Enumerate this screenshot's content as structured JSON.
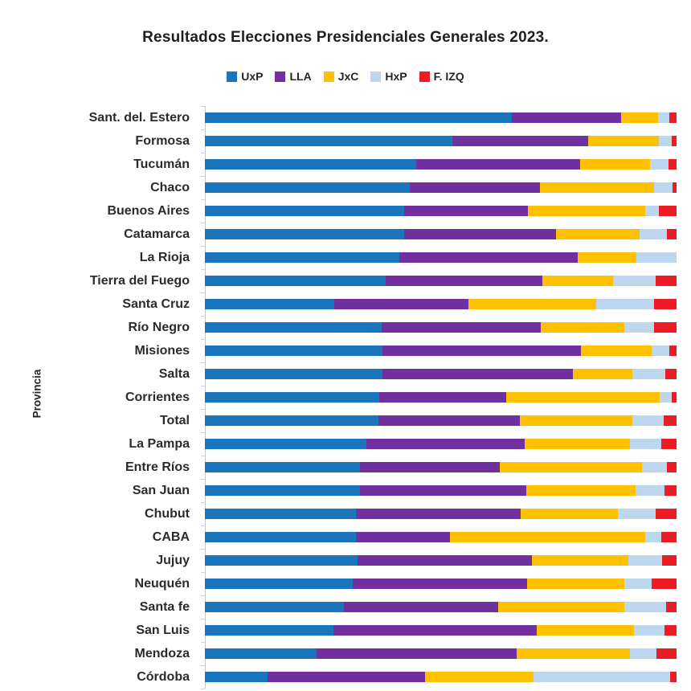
{
  "title": "Resultados Elecciones Presidenciales Generales 2023.",
  "ylabel": "Provincia",
  "colors": {
    "UxP": "#1B75BC",
    "LLA": "#7030A0",
    "JxC": "#FFC000",
    "HxP": "#BDD7EE",
    "F. IZQ": "#EC1C24",
    "axis": "#AECDE8"
  },
  "legend": [
    {
      "label": "UxP",
      "color": "#1B75BC"
    },
    {
      "label": "LLA",
      "color": "#7030A0"
    },
    {
      "label": "JxC",
      "color": "#FFC000"
    },
    {
      "label": "HxP",
      "color": "#BDD7EE"
    },
    {
      "label": "F. IZQ",
      "color": "#EC1C24"
    }
  ],
  "chart_data": {
    "type": "bar",
    "orientation": "horizontal",
    "stacked": true,
    "units": "percent of votes",
    "title": "Resultados Elecciones Presidenciales Generales 2023.",
    "xlabel": "",
    "ylabel": "Provincia",
    "xlim": [
      0,
      100
    ],
    "grid": false,
    "legend_position": "top",
    "categories": [
      "Sant. del. Estero",
      "Formosa",
      "Tucumán",
      "Chaco",
      "Buenos Aires",
      "Catamarca",
      "La Rioja",
      "Tierra del Fuego",
      "Santa Cruz",
      "Río Negro",
      "Misiones",
      "Salta",
      "Corrientes",
      "Total",
      "La Pampa",
      "Entre Ríos",
      "San Juan",
      "Chubut",
      "CABA",
      "Jujuy",
      "Neuquén",
      "Santa fe",
      "San Luis",
      "Mendoza",
      "Córdoba"
    ],
    "series": [
      {
        "name": "UxP",
        "color": "#1B75BC",
        "values": [
          65.1,
          52.4,
          44.8,
          43.5,
          42.3,
          42.3,
          41.3,
          38.4,
          27.5,
          37.4,
          37.7,
          37.7,
          36.9,
          36.8,
          34.2,
          32.9,
          32.9,
          32.1,
          32.1,
          32.4,
          31.4,
          29.5,
          27.3,
          23.6,
          13.3
        ]
      },
      {
        "name": "LLA",
        "color": "#7030A0",
        "values": [
          23.1,
          28.9,
          34.8,
          27.6,
          26.2,
          32.1,
          37.8,
          33.2,
          28.4,
          33.8,
          42.1,
          40.3,
          27.0,
          30.0,
          33.6,
          29.7,
          35.2,
          34.9,
          19.8,
          37.0,
          36.9,
          32.6,
          43.1,
          42.5,
          33.4
        ]
      },
      {
        "name": "JxC",
        "color": "#FFC000",
        "values": [
          7.8,
          14.9,
          14.7,
          24.2,
          24.8,
          17.7,
          12.4,
          15.0,
          27.1,
          17.8,
          14.9,
          12.7,
          32.6,
          23.8,
          22.3,
          30.1,
          23.3,
          20.5,
          41.5,
          20.3,
          20.6,
          26.8,
          20.6,
          24.0,
          23.0
        ]
      },
      {
        "name": "HxP",
        "color": "#BDD7EE",
        "values": [
          2.5,
          2.8,
          4.0,
          3.8,
          2.9,
          5.9,
          8.5,
          9.0,
          12.2,
          6.2,
          3.8,
          6.9,
          2.5,
          6.7,
          6.6,
          5.3,
          6.1,
          8.1,
          3.3,
          7.3,
          5.8,
          8.9,
          6.5,
          5.7,
          29.0
        ]
      },
      {
        "name": "F. IZQ",
        "color": "#EC1C24",
        "values": [
          1.5,
          1.0,
          1.7,
          0.9,
          3.8,
          2.0,
          0.0,
          4.4,
          4.8,
          4.8,
          1.5,
          2.4,
          1.0,
          2.7,
          3.3,
          2.0,
          2.5,
          4.4,
          3.3,
          3.0,
          5.3,
          2.2,
          2.5,
          4.2,
          1.3
        ]
      }
    ]
  }
}
